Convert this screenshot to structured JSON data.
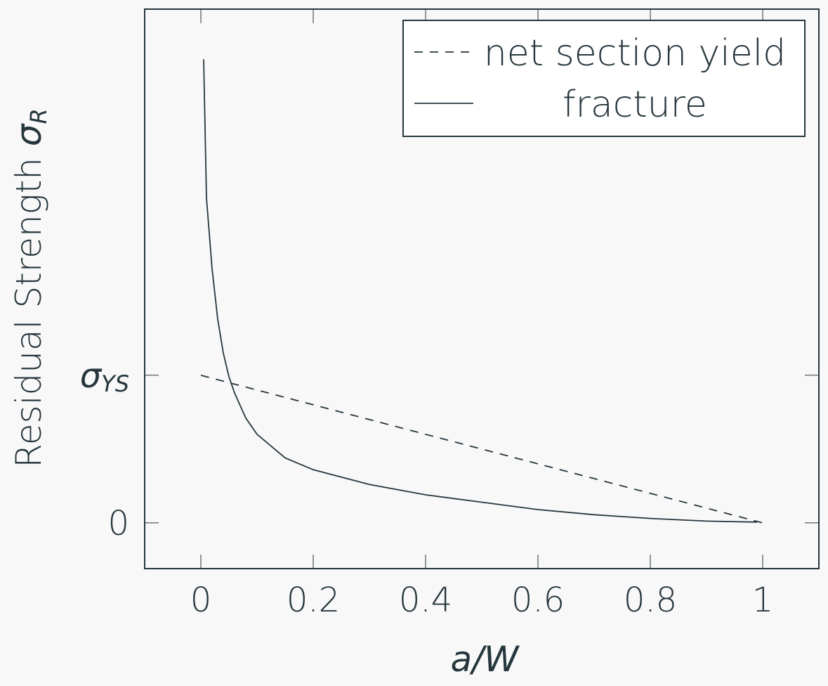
{
  "chart_data": {
    "type": "line",
    "xlabel": "a/W",
    "ylabel": "Residual Strength σR",
    "ylabel_main": "Residual Strength ",
    "ylabel_symbol": "σ",
    "ylabel_sub": "R",
    "xlim": [
      -0.1,
      1.1
    ],
    "ylim": [
      -0.31,
      3.48
    ],
    "x_ticks": [
      0,
      0.2,
      0.4,
      0.6,
      0.8,
      1
    ],
    "x_tick_labels": [
      "0",
      "0.2",
      "0.4",
      "0.6",
      "0.8",
      "1"
    ],
    "y_ticks": [
      {
        "value": 0,
        "label": "0",
        "symbol": "",
        "sub": ""
      },
      {
        "value": 1,
        "label": "σYS",
        "symbol": "σ",
        "sub": "YS"
      }
    ],
    "grid": false,
    "legend_position": "top-right",
    "series": [
      {
        "name": "net section yield",
        "style": "dashed",
        "x": [
          0,
          1
        ],
        "y": [
          1,
          0
        ]
      },
      {
        "name": "fracture",
        "style": "solid",
        "x": [
          0.005,
          0.01,
          0.02,
          0.03,
          0.04,
          0.05,
          0.06,
          0.08,
          0.1,
          0.15,
          0.2,
          0.3,
          0.4,
          0.5,
          0.6,
          0.7,
          0.8,
          0.9,
          0.99
        ],
        "y": [
          3.14,
          2.2,
          1.72,
          1.38,
          1.15,
          0.99,
          0.88,
          0.71,
          0.6,
          0.44,
          0.36,
          0.26,
          0.19,
          0.14,
          0.09,
          0.055,
          0.03,
          0.012,
          0.005
        ]
      }
    ],
    "colors": {
      "line": "#26363d",
      "background": "#f8f8f8"
    }
  }
}
